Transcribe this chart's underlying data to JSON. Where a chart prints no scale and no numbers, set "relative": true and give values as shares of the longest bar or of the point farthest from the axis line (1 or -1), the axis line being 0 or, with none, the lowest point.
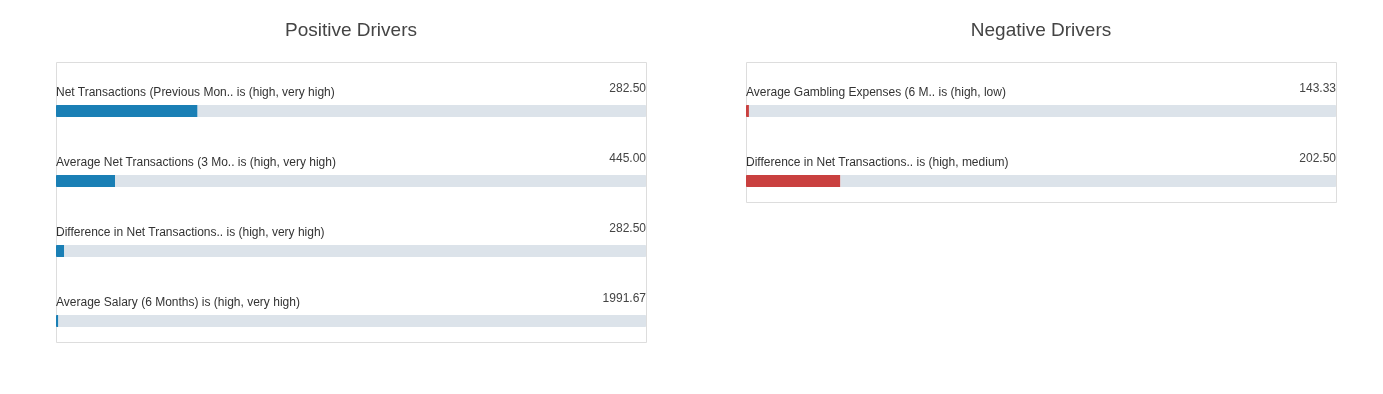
{
  "chart_data": [
    {
      "type": "bar",
      "title": "Positive Drivers",
      "orientation": "horizontal",
      "stacked": true,
      "relative": true,
      "categories": [
        "Net Transactions (Previous Mon.. is (high, very high)",
        "Average Net Transactions (3 Mo.. is (high, very high)",
        "Difference in Net Transactions.. is (high, very high)",
        "Average Salary (6 Months) is (high, very high)"
      ],
      "series": [
        {
          "color": "#1a7fb5",
          "values": [
            0.24,
            0.1,
            0.014,
            0.004
          ]
        },
        {
          "color": "#dce3ea",
          "values": [
            0.76,
            0.9,
            0.986,
            0.996
          ]
        }
      ],
      "annotations": [
        "282.50",
        "445.00",
        "282.50",
        "1991.67"
      ]
    },
    {
      "type": "bar",
      "title": "Negative Drivers",
      "orientation": "horizontal",
      "stacked": true,
      "relative": true,
      "categories": [
        "Average Gambling Expenses (6 M.. is (high, low)",
        "Difference in Net Transactions.. is (high, medium)"
      ],
      "series": [
        {
          "color": "#c9403f",
          "values": [
            0.005,
            0.16
          ]
        },
        {
          "color": "#dce3ea",
          "values": [
            0.995,
            0.84
          ]
        }
      ],
      "annotations": [
        "143.33",
        "202.50"
      ]
    }
  ]
}
